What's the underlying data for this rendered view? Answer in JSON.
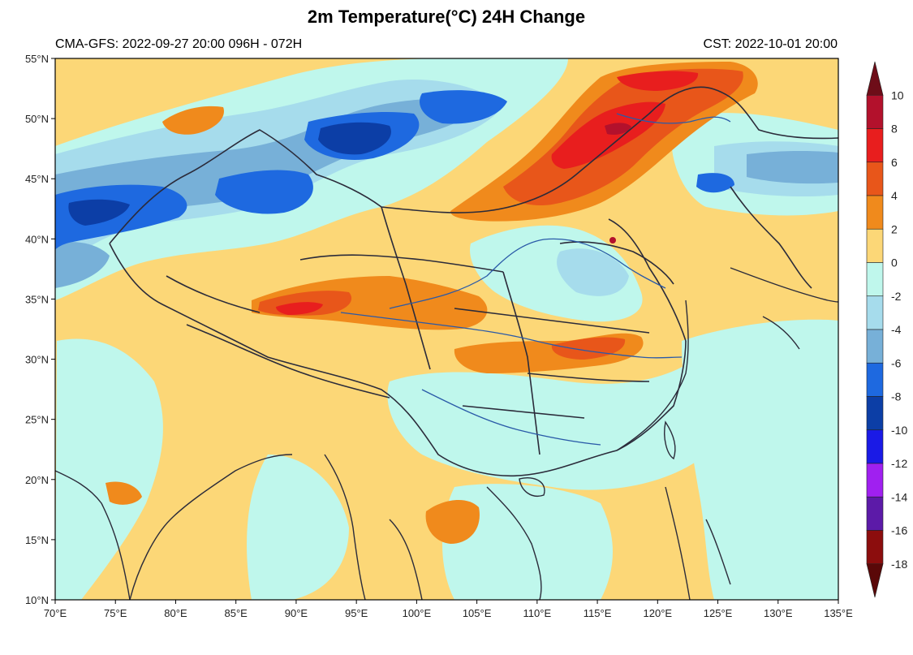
{
  "title": "2m Temperature(°C) 24H Change",
  "header": {
    "model_run": "CMA-GFS: 2022-09-27 20:00   096H - 072H",
    "valid_time": "CST: 2022-10-01 20:00"
  },
  "map": {
    "lon_range": [
      70,
      135
    ],
    "lat_range": [
      10,
      55
    ],
    "lon_ticks": [
      "70°E",
      "75°E",
      "80°E",
      "85°E",
      "90°E",
      "95°E",
      "100°E",
      "105°E",
      "110°E",
      "115°E",
      "120°E",
      "125°E",
      "130°E",
      "135°E"
    ],
    "lat_ticks": [
      "10°N",
      "15°N",
      "20°N",
      "25°N",
      "30°N",
      "35°N",
      "40°N",
      "45°N",
      "50°N",
      "55°N"
    ],
    "background_class": "0 to 2",
    "line_color": "#2b2b3a",
    "river_color": "#2a5aa8"
  },
  "colorbar": {
    "labels": [
      "10",
      "8",
      "6",
      "4",
      "2",
      "0",
      "-2",
      "-4",
      "-6",
      "-8",
      "-10",
      "-12",
      "-14",
      "-16",
      "-18"
    ],
    "colors": [
      "#6e0d18",
      "#b3112c",
      "#e81e1e",
      "#e8561a",
      "#f08a1c",
      "#fcd777",
      "#bff7ec",
      "#a6dcec",
      "#77b0d8",
      "#1e69e0",
      "#0c3ea6",
      "#1a1ae6",
      "#a020f0",
      "#5c1aa8",
      "#8c0d0d",
      "#5a0808"
    ]
  },
  "chart_data": {
    "type": "heatmap",
    "variable": "2m Temperature(°C) 24H Change",
    "units": "°C",
    "lon_range": [
      70,
      135
    ],
    "lat_range": [
      10,
      55
    ],
    "color_levels": [
      -18,
      -16,
      -14,
      -12,
      -10,
      -8,
      -6,
      -4,
      -2,
      0,
      2,
      4,
      6,
      8,
      10
    ]
  }
}
